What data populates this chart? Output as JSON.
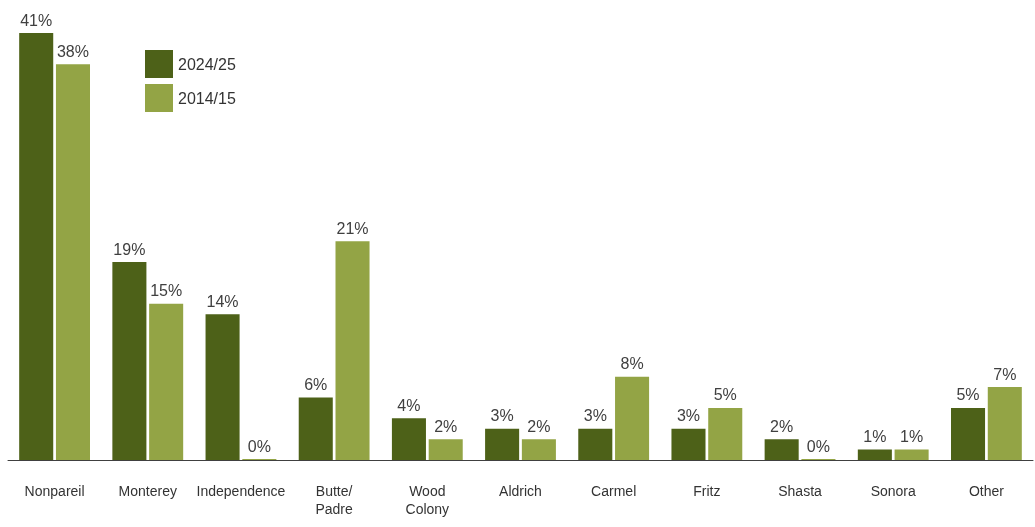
{
  "chart_data": {
    "type": "bar",
    "categories": [
      "Nonpareil",
      "Monterey",
      "Independence",
      "Butte/ Padre",
      "Wood Colony",
      "Aldrich",
      "Carmel",
      "Fritz",
      "Shasta",
      "Sonora",
      "Other"
    ],
    "series": [
      {
        "name": "2024/25",
        "color": "#4d6118",
        "values": [
          41,
          19,
          14,
          6,
          4,
          3,
          3,
          3,
          2,
          1,
          5
        ],
        "value_labels": [
          "41%",
          "19%",
          "14%",
          "6%",
          "4%",
          "3%",
          "3%",
          "3%",
          "2%",
          "1%",
          "5%"
        ]
      },
      {
        "name": "2014/15",
        "color": "#93a445",
        "values": [
          38,
          15,
          0,
          21,
          2,
          2,
          8,
          5,
          0,
          1,
          7
        ],
        "value_labels": [
          "38%",
          "15%",
          "0%",
          "21%",
          "2%",
          "2%",
          "8%",
          "5%",
          "0%",
          "1%",
          "7%"
        ]
      }
    ],
    "legend": "top left"
  }
}
